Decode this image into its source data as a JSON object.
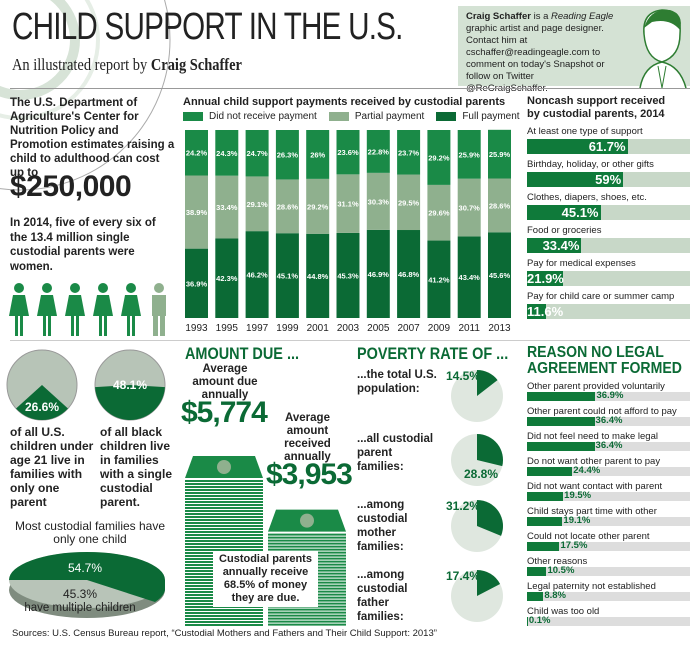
{
  "header": {
    "title": "CHILD SUPPORT IN THE U.S.",
    "subtitle_prefix": "An illustrated report by",
    "subtitle_author": "Craig Schaffer",
    "bio_name": "Craig Schaffer",
    "bio_text1": " is a ",
    "bio_pub": "Reading Eagle",
    "bio_text2": " graphic artist and page designer. Contact him at cschaffer@readingeagle.com to comment on today's Snapshot or follow on Twitter @ReCraigSchaffer."
  },
  "intro": {
    "text": "The U.S. Department of Agriculture's Center for Nutrition Policy and Promotion estimates raising a child to adulthood can cost up to",
    "amount": "$250,000",
    "text2": "In 2014, five of every six of the 13.4 million single custodial parents were women.",
    "women": 5,
    "men": 1
  },
  "colors": {
    "dark": "#0b6a35",
    "mid": "#8fb08e",
    "bright": "#1a8a47",
    "pale": "#c8d8c8"
  },
  "chart_data": [
    {
      "type": "bar",
      "stacked": true,
      "title": "Annual child support payments received by custodial parents",
      "legend_position": "top",
      "categories": [
        "1993",
        "1995",
        "1997",
        "1999",
        "2001",
        "2003",
        "2005",
        "2007",
        "2009",
        "2011",
        "2013"
      ],
      "series": [
        {
          "name": "Full payment",
          "values": [
            36.9,
            42.3,
            46.2,
            45.1,
            44.8,
            45.3,
            46.9,
            46.8,
            41.2,
            43.4,
            45.6
          ],
          "labels": [
            "36.9%",
            "42.3%",
            "46.2%",
            "45.1%",
            "44.8%",
            "45.3%",
            "46.9%",
            "46.8%",
            "41.2%",
            "43.4%",
            "45.6%"
          ]
        },
        {
          "name": "Partial payment",
          "values": [
            38.9,
            33.4,
            29.1,
            28.6,
            29.2,
            31.1,
            30.3,
            29.5,
            29.6,
            30.7,
            28.6
          ],
          "labels": [
            "38.9%",
            "33.4%",
            "29.1%",
            "28.6%",
            "29.2%",
            "31.1%",
            "30.3%",
            "29.5%",
            "29.6%",
            "30.7%",
            "28.6%"
          ]
        },
        {
          "name": "Did not receive payment",
          "values": [
            24.2,
            24.3,
            24.7,
            26.3,
            26,
            23.6,
            22.8,
            23.7,
            29.2,
            25.9,
            25.9
          ],
          "labels": [
            "24.2%",
            "24.3%",
            "24.7%",
            "26.3%",
            "26%",
            "23.6%",
            "22.8%",
            "23.7%",
            "29.2%",
            "25.9%",
            "25.9%"
          ]
        }
      ]
    },
    {
      "type": "bar",
      "orientation": "horizontal",
      "title": "Noncash support received by custodial parents, 2014",
      "categories": [
        "At least one type of support",
        "Birthday, holiday, or other gifts",
        "Clothes, diapers, shoes, etc.",
        "Food or groceries",
        "Pay for medical expenses",
        "Pay for child care or summer camp"
      ],
      "values": [
        61.7,
        59,
        45.1,
        33.4,
        21.9,
        11.6
      ],
      "labels": [
        "61.7%",
        "59%",
        "45.1%",
        "33.4%",
        "21.9%",
        "11.6%"
      ]
    },
    {
      "type": "pie",
      "values": [
        26.6
      ],
      "label": "26.6%",
      "caption": "of all U.S. children under age 21 live in families with only one parent"
    },
    {
      "type": "pie",
      "values": [
        48.1
      ],
      "label": "48.1%",
      "caption": "of all black children live in families with a single custodial parent."
    },
    {
      "type": "pie",
      "title": "Most custodial families have only one child",
      "values": [
        54.7,
        45.3
      ],
      "labels": [
        "54.7%",
        "45.3%"
      ],
      "caption": "have multiple children"
    },
    {
      "type": "bar",
      "title": "AMOUNT DUE ...",
      "categories": [
        "Average amount due annually",
        "Average amount received annually"
      ],
      "values": [
        5774,
        3953
      ],
      "labels": [
        "$5,774",
        "$3,953"
      ],
      "note1": "Custodial parents annually receive",
      "note2": "68.5% of money",
      "note3": "they are due."
    },
    {
      "type": "pie",
      "title": "POVERTY RATE OF ...",
      "categories": [
        "...the total U.S. population:",
        "...all custodial parent families:",
        "...among custodial mother families:",
        "...among custodial father families:"
      ],
      "values": [
        14.5,
        28.8,
        31.2,
        17.4
      ],
      "labels": [
        "14.5%",
        "28.8%",
        "31.2%",
        "17.4%"
      ]
    },
    {
      "type": "bar",
      "orientation": "horizontal",
      "title": "REASON NO LEGAL AGREEMENT FORMED",
      "categories": [
        "Other parent provided voluntarily",
        "Other parent could not afford to pay",
        "Did not feel need to make legal",
        "Do not want other parent to pay",
        "Did not want contact with parent",
        "Child stays part time with other",
        "Could not locate other parent",
        "Other reasons",
        "Legal paternity not established",
        "Child was too old"
      ],
      "values": [
        36.9,
        36.4,
        36.4,
        24.4,
        19.5,
        19.1,
        17.5,
        10.5,
        8.8,
        0.1
      ],
      "labels": [
        "36.9%",
        "36.4%",
        "36.4%",
        "24.4%",
        "19.5%",
        "19.1%",
        "17.5%",
        "10.5%",
        "8.8%",
        "0.1%"
      ]
    }
  ],
  "sources": "Sources:  U.S. Census Bureau report, “Custodial Mothers and Fathers and Their Child Support: 2013”"
}
